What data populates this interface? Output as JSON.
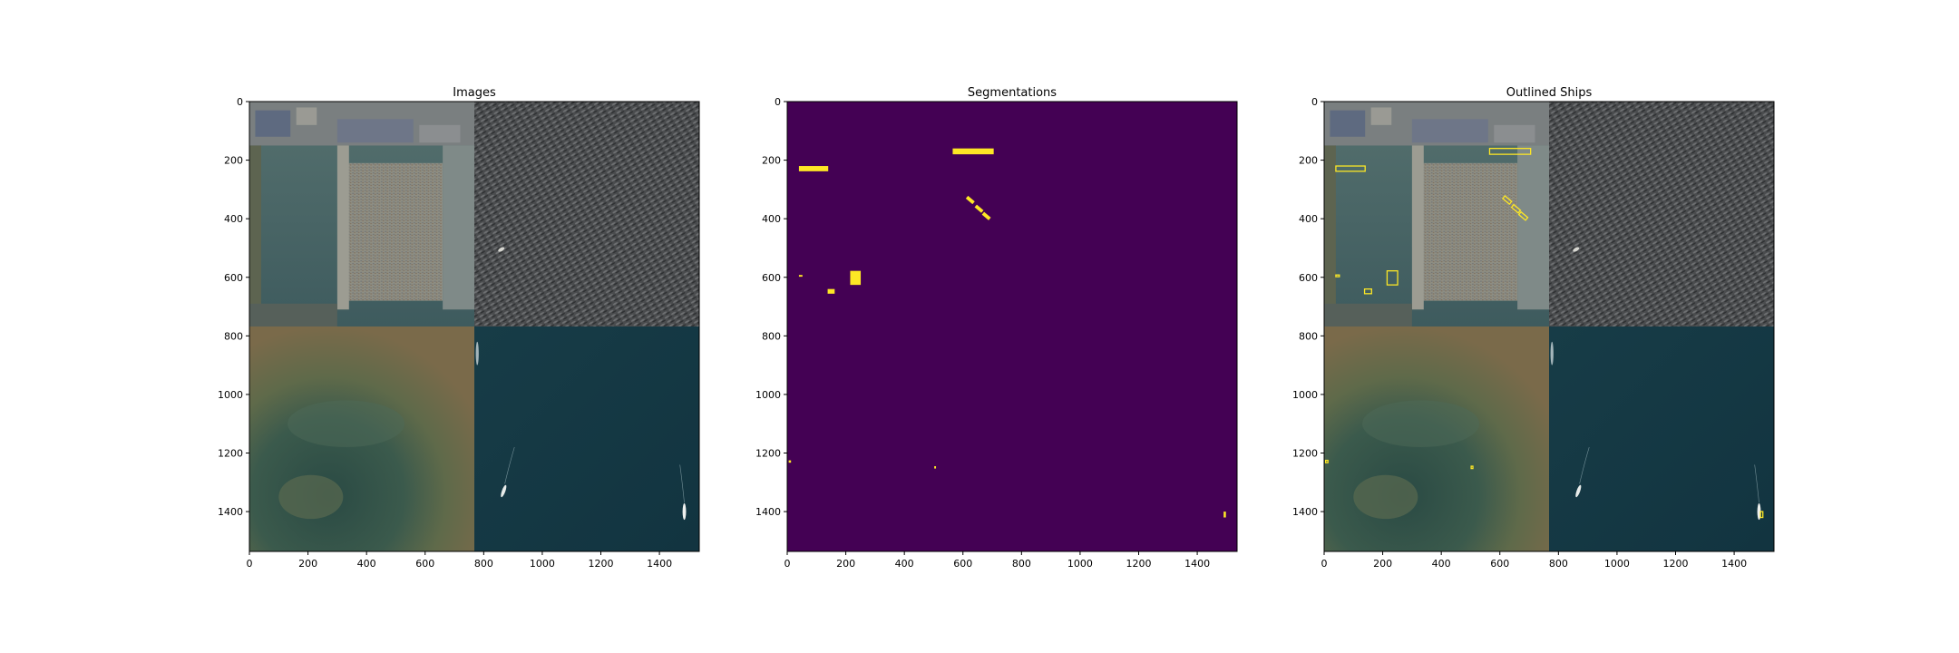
{
  "figure": {
    "colors": {
      "background": "#ffffff",
      "seg_background": "#440154",
      "seg_foreground": "#fde725",
      "outline": "#fde725",
      "ocean_top_right": "#4a4d50",
      "ocean_bottom_right": "#163a45",
      "land_bottom_left": "#7a6a4a",
      "harbor_top_left": "#51696a"
    }
  },
  "chart_data": [
    {
      "type": "image",
      "title": "Images",
      "xlim": [
        0,
        1536
      ],
      "ylim": [
        1536,
        0
      ],
      "xticks": [
        0,
        200,
        400,
        600,
        800,
        1000,
        1200,
        1400
      ],
      "yticks": [
        0,
        200,
        400,
        600,
        800,
        1000,
        1200,
        1400
      ]
    },
    {
      "type": "heatmap",
      "title": "Segmentations",
      "xlim": [
        0,
        1536
      ],
      "ylim": [
        1536,
        0
      ],
      "xticks": [
        0,
        200,
        400,
        600,
        800,
        1000,
        1200,
        1400
      ],
      "yticks": [
        0,
        200,
        400,
        600,
        800,
        1000,
        1200,
        1400
      ],
      "masks": [
        {
          "x": 40,
          "y": 220,
          "w": 100,
          "h": 18
        },
        {
          "x": 565,
          "y": 160,
          "w": 140,
          "h": 20
        },
        {
          "x": 610,
          "y": 330,
          "w": 30,
          "h": 12,
          "angle": 40
        },
        {
          "x": 640,
          "y": 360,
          "w": 30,
          "h": 12,
          "angle": 40
        },
        {
          "x": 665,
          "y": 385,
          "w": 30,
          "h": 12,
          "angle": 40
        },
        {
          "x": 40,
          "y": 592,
          "w": 12,
          "h": 6
        },
        {
          "x": 215,
          "y": 578,
          "w": 36,
          "h": 48
        },
        {
          "x": 138,
          "y": 640,
          "w": 24,
          "h": 16
        },
        {
          "x": 5,
          "y": 1225,
          "w": 8,
          "h": 8
        },
        {
          "x": 502,
          "y": 1245,
          "w": 6,
          "h": 8
        },
        {
          "x": 1490,
          "y": 1400,
          "w": 8,
          "h": 20
        }
      ]
    },
    {
      "type": "image",
      "title": "Outlined Ships",
      "xlim": [
        0,
        1536
      ],
      "ylim": [
        1536,
        0
      ],
      "xticks": [
        0,
        200,
        400,
        600,
        800,
        1000,
        1200,
        1400
      ],
      "yticks": [
        0,
        200,
        400,
        600,
        800,
        1000,
        1200,
        1400
      ]
    }
  ]
}
